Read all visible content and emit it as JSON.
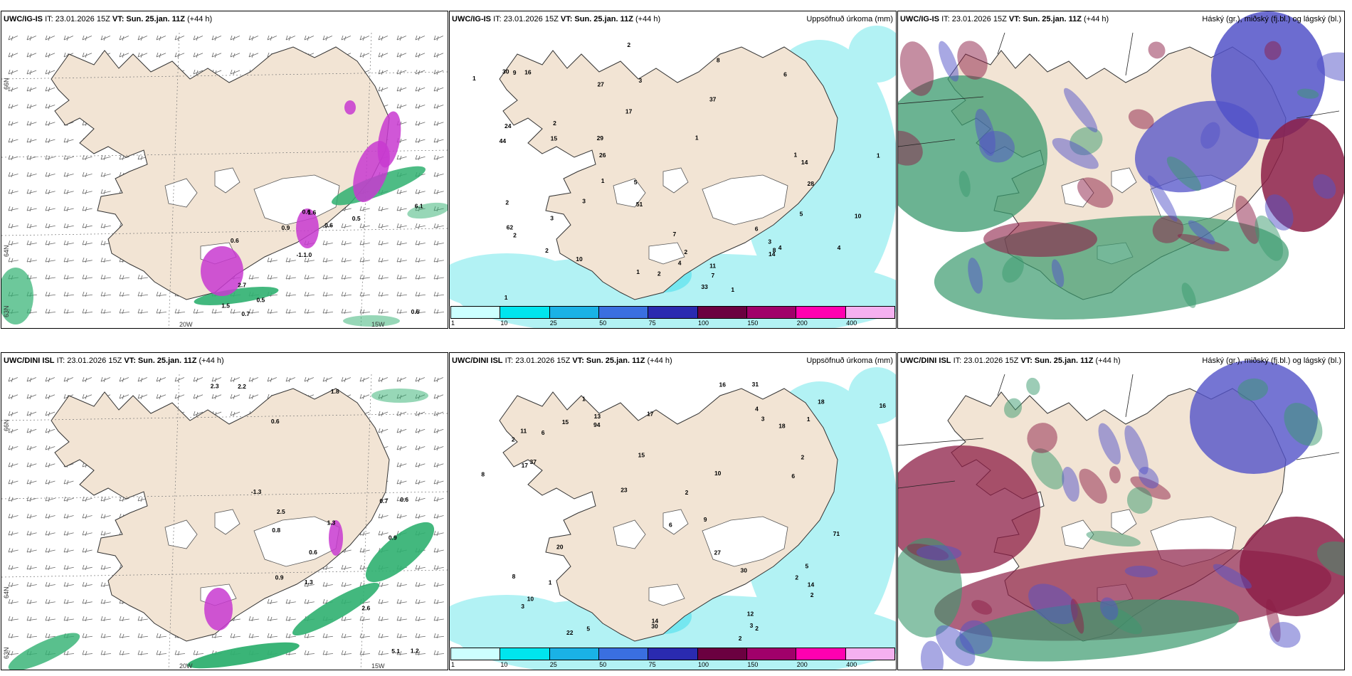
{
  "panels": [
    {
      "id": "top-left",
      "model": "UWC/IG-IS",
      "it_label": "IT:",
      "it_value": "23.01.2026 15Z",
      "vt_label": "VT:",
      "vt_value": "Sun. 25.jan. 11Z",
      "lead": "(+44 h)",
      "right_title": "",
      "map_kind": "wind",
      "lon_labels": [
        "20W",
        "15W"
      ],
      "lat_labels": [
        "66N",
        "64N",
        "63N"
      ],
      "values": [
        "0.6",
        "0.6",
        "6.1",
        "-1.1.0",
        "0.5",
        "0.7",
        "0.6",
        "0.6",
        "2.7",
        "0.9",
        "1.5",
        "0.5",
        "1.6"
      ]
    },
    {
      "id": "top-middle",
      "model": "UWC/IG-IS",
      "it_label": "IT:",
      "it_value": "23.01.2026 15Z",
      "vt_label": "VT:",
      "vt_value": "Sun. 25.jan. 11Z",
      "lead": "(+44 h)",
      "right_title": "Uppsöfnuð úrkoma (mm)",
      "map_kind": "precip",
      "values": [
        "1",
        "2",
        "1",
        "1",
        "1",
        "2",
        "4",
        "2",
        "1",
        "2",
        "3",
        "4",
        "2",
        "1",
        "6",
        "7",
        "3",
        "8",
        "10",
        "14",
        "16",
        "28",
        "15",
        "26",
        "11",
        "10",
        "8",
        "33",
        "27",
        "29",
        "30",
        "6",
        "5",
        "7",
        "14",
        "17",
        "9",
        "4",
        "5",
        "3",
        "1",
        "2",
        "1",
        "62",
        "44",
        "37",
        "24",
        "51",
        "2",
        "3"
      ]
    },
    {
      "id": "top-right",
      "model": "UWC/IG-IS",
      "it_label": "IT:",
      "it_value": "23.01.2026 15Z",
      "vt_label": "VT:",
      "vt_value": "Sun. 25.jan. 11Z",
      "lead": "(+44 h)",
      "right_title": "Háský (gr.), miðský (fj.bl.) og lágský (bl.)",
      "map_kind": "cloud"
    },
    {
      "id": "bottom-left",
      "model": "UWC/DINI ISL",
      "it_label": "IT:",
      "it_value": "23.01.2026 15Z",
      "vt_label": "VT:",
      "vt_value": "Sun. 25.jan. 11Z",
      "lead": "(+44 h)",
      "right_title": "",
      "map_kind": "wind",
      "lon_labels": [
        "20W",
        "15W"
      ],
      "lat_labels": [
        "66N",
        "64N",
        "63N"
      ],
      "values": [
        "0.6",
        "-1.3",
        "2.2",
        "0.9",
        "1.2",
        "0.6",
        "1.3",
        "0.8",
        "0.9",
        "0.7",
        "0.6",
        "1.8",
        "2.3",
        "5.1",
        "2.5",
        "2.6",
        "1.3"
      ]
    },
    {
      "id": "bottom-middle",
      "model": "UWC/DINI ISL",
      "it_label": "IT:",
      "it_value": "23.01.2026 15Z",
      "vt_label": "VT:",
      "vt_value": "Sun. 25.jan. 11Z",
      "lead": "(+44 h)",
      "right_title": "Uppsöfnuð úrkoma (mm)",
      "map_kind": "precip",
      "values": [
        "1",
        "2",
        "3",
        "2",
        "1",
        "3",
        "2",
        "6",
        "4",
        "18",
        "10",
        "31",
        "20",
        "17",
        "14",
        "9",
        "6",
        "13",
        "11",
        "15",
        "16",
        "22",
        "23",
        "12",
        "15",
        "16",
        "18",
        "17",
        "27",
        "30",
        "6",
        "2",
        "14",
        "5",
        "8",
        "5",
        "2",
        "2",
        "1",
        "8",
        "10",
        "71",
        "94",
        "37",
        "30",
        "2",
        "3"
      ]
    },
    {
      "id": "bottom-right",
      "model": "UWC/DINI ISL",
      "it_label": "IT:",
      "it_value": "23.01.2026 15Z",
      "vt_label": "VT:",
      "vt_value": "Sun. 25.jan. 11Z",
      "lead": "(+44 h)",
      "right_title": "Háský (gr.), miðský (fj.bl.) og lágský (bl.)",
      "map_kind": "cloud"
    }
  ],
  "precip_legend": {
    "ticks": [
      "1",
      "10",
      "25",
      "50",
      "75",
      "100",
      "150",
      "200",
      "400"
    ],
    "colors": [
      "#ccffff",
      "#00e5ee",
      "#1ab2e6",
      "#3a6fe0",
      "#2a2ab0",
      "#6b0040",
      "#a0006a",
      "#ff00b0",
      "#f5b0f0"
    ]
  },
  "colors": {
    "land": "#f2e4d4",
    "sea_precip": "#b2f2f4",
    "green": "#2fb070",
    "magenta": "#c83ad0",
    "cloud_green": "#3a9a6e",
    "cloud_blue": "#5252c8",
    "cloud_red": "#8c1e46"
  }
}
